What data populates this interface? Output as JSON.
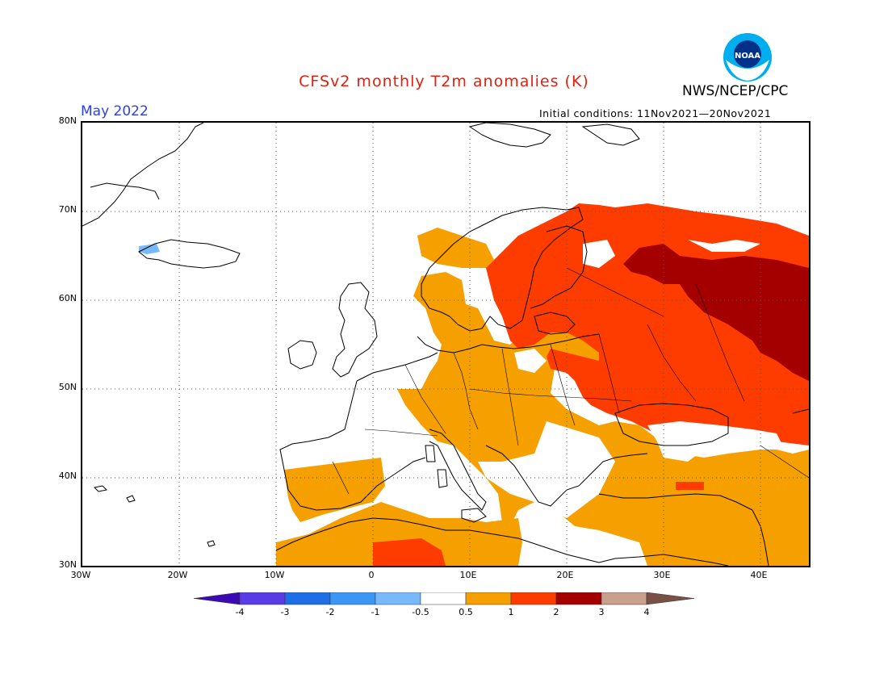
{
  "title": "CFSv2 monthly T2m anomalies (K)",
  "valid_month": "May 2022",
  "agency": "NWS/NCEP/CPC",
  "logo_text": "NOAA",
  "initial_conditions": "Initial conditions: 11Nov2021—20Nov2021",
  "map": {
    "lon_range": [
      -30,
      45
    ],
    "lat_range": [
      30,
      80
    ],
    "lat_labels": [
      "80N",
      "70N",
      "60N",
      "50N",
      "40N",
      "30N"
    ],
    "lon_labels": [
      "30W",
      "20W",
      "10W",
      "0",
      "10E",
      "20E",
      "30E",
      "40E"
    ]
  },
  "colorbar": {
    "labels": [
      "-4",
      "-3",
      "-2",
      "-1",
      "-0.5",
      "0.5",
      "1",
      "2",
      "3",
      "4"
    ],
    "colors": [
      "#3c0ab4",
      "#5a3ce6",
      "#1e6ee6",
      "#3c96f5",
      "#78b9fa",
      "#ffffff",
      "#f6a000",
      "#ff3c00",
      "#a50000",
      "#c8a08c",
      "#785046"
    ]
  }
}
